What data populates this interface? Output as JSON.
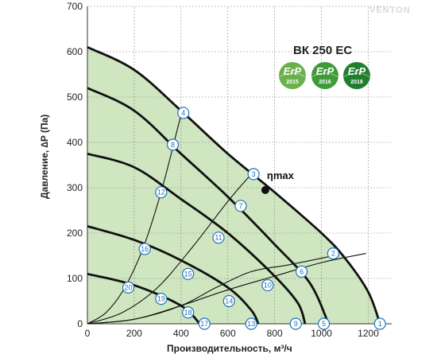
{
  "chart_data": {
    "type": "line",
    "title": "ВК 250 ЕС",
    "xlabel": "Производительность, м³/ч",
    "ylabel": "Давление, ∆P (Па)",
    "xlim": [
      0,
      1300
    ],
    "ylim": [
      0,
      700
    ],
    "xticks": [
      "0",
      "200",
      "400",
      "600",
      "800",
      "1000",
      "1200"
    ],
    "yticks": [
      "0",
      "100",
      "200",
      "300",
      "400",
      "500",
      "600",
      "700"
    ],
    "grid": true,
    "envelope_color": "#cfe6c1",
    "curve_color": "#111111",
    "marker_color": "#1f73b8",
    "series": [
      {
        "x": [
          0,
          200,
          400,
          600,
          800,
          1000,
          1100,
          1200,
          1250
        ],
        "values": [
          610,
          560,
          470,
          375,
          290,
          200,
          145,
          70,
          0
        ]
      },
      {
        "x": [
          0,
          200,
          400,
          600,
          800,
          950,
          1030
        ],
        "values": [
          520,
          470,
          375,
          280,
          175,
          90,
          0
        ]
      },
      {
        "x": [
          0,
          200,
          400,
          600,
          800,
          900,
          930
        ],
        "values": [
          375,
          345,
          275,
          200,
          105,
          45,
          0
        ]
      },
      {
        "x": [
          0,
          200,
          400,
          600,
          700,
          730
        ],
        "values": [
          215,
          185,
          140,
          80,
          30,
          0
        ]
      },
      {
        "x": [
          0,
          200,
          400,
          480
        ],
        "values": [
          110,
          85,
          40,
          0
        ]
      }
    ],
    "system_curves": [
      {
        "x": [
          0,
          80,
          160,
          240,
          320,
          400,
          410
        ],
        "values": [
          0,
          25,
          80,
          170,
          300,
          460,
          465
        ]
      },
      {
        "x": [
          0,
          150,
          300,
          450,
          600,
          700
        ],
        "values": [
          0,
          25,
          80,
          170,
          270,
          330
        ]
      },
      {
        "x": [
          0,
          200,
          400,
          550,
          700,
          860,
          1050
        ],
        "values": [
          0,
          10,
          40,
          80,
          115,
          130,
          150
        ]
      },
      {
        "x": [
          0,
          200,
          400,
          600,
          800,
          1000,
          1190
        ],
        "values": [
          0,
          10,
          40,
          75,
          105,
          135,
          155
        ]
      }
    ],
    "operating_points": [
      {
        "label": "1",
        "x": 1250,
        "y": 0
      },
      {
        "label": "2",
        "x": 1050,
        "y": 155
      },
      {
        "label": "3",
        "x": 710,
        "y": 330
      },
      {
        "label": "4",
        "x": 410,
        "y": 465
      },
      {
        "label": "5",
        "x": 1010,
        "y": 0
      },
      {
        "label": "6",
        "x": 915,
        "y": 115
      },
      {
        "label": "7",
        "x": 655,
        "y": 260
      },
      {
        "label": "8",
        "x": 365,
        "y": 395
      },
      {
        "label": "9",
        "x": 890,
        "y": 0
      },
      {
        "label": "10",
        "x": 770,
        "y": 85
      },
      {
        "label": "11",
        "x": 560,
        "y": 190
      },
      {
        "label": "12",
        "x": 315,
        "y": 290
      },
      {
        "label": "13",
        "x": 700,
        "y": 0
      },
      {
        "label": "14",
        "x": 605,
        "y": 50
      },
      {
        "label": "15",
        "x": 430,
        "y": 110
      },
      {
        "label": "16",
        "x": 245,
        "y": 165
      },
      {
        "label": "17",
        "x": 500,
        "y": 0
      },
      {
        "label": "18",
        "x": 430,
        "y": 25
      },
      {
        "label": "19",
        "x": 315,
        "y": 55
      },
      {
        "label": "20",
        "x": 175,
        "y": 80
      }
    ],
    "max_efficiency": {
      "label": "ηmax",
      "x": 760,
      "y": 295
    }
  },
  "badges": [
    {
      "label": "ErP",
      "year": "2015",
      "color": "#6ab04c"
    },
    {
      "label": "ErP",
      "year": "2016",
      "color": "#3f9a3a"
    },
    {
      "label": "ErP",
      "year": "2018",
      "color": "#1f7f2d"
    }
  ],
  "brand": "VENTON"
}
